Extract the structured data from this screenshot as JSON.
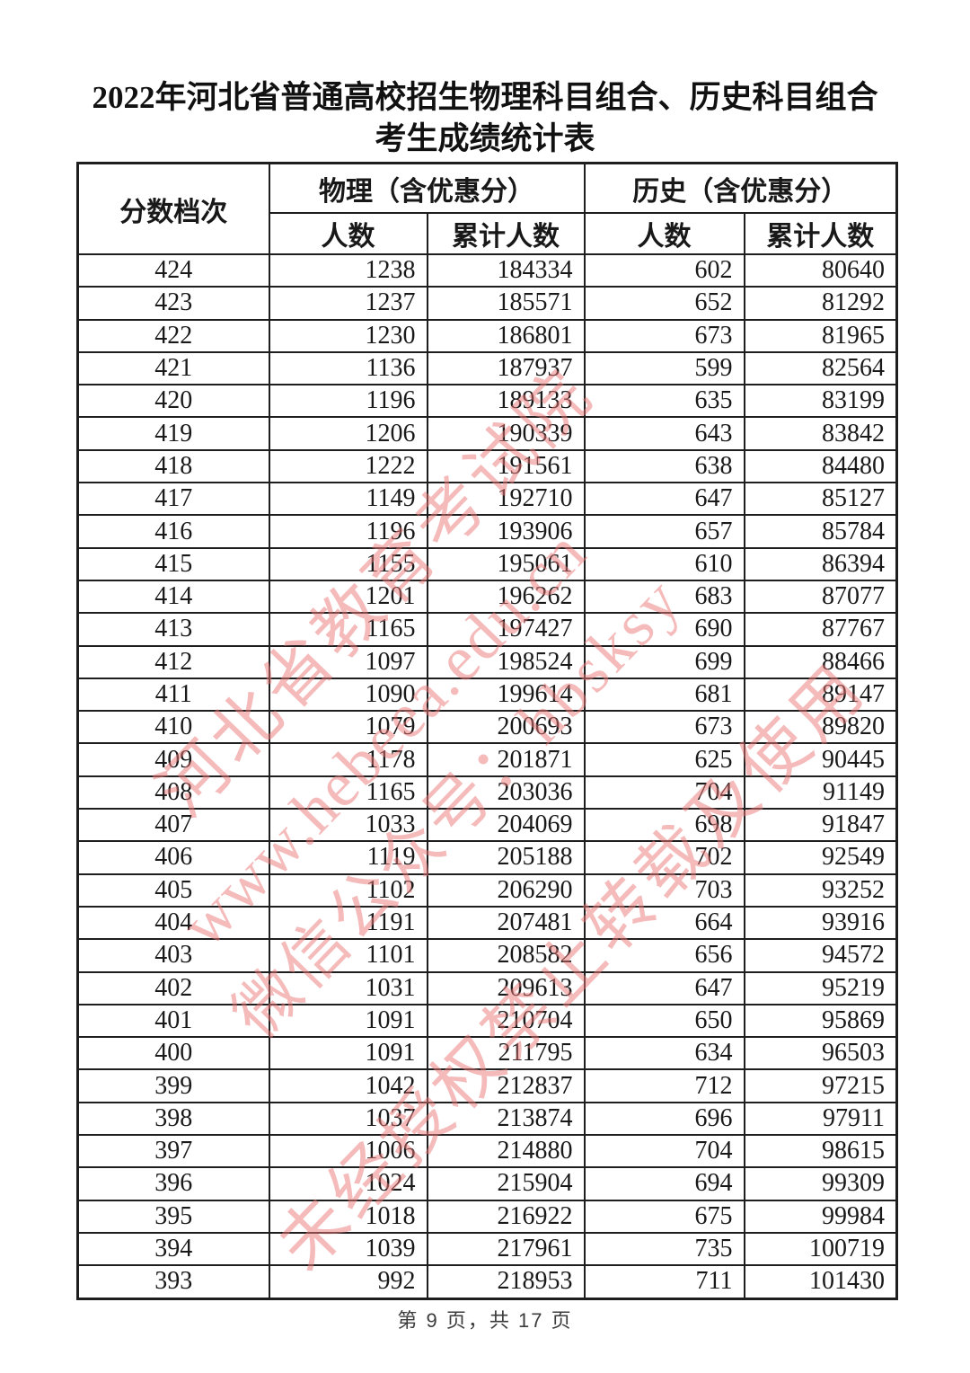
{
  "page": {
    "title_line1": "2022年河北省普通高校招生物理科目组合、历史科目组合",
    "title_line2": "考生成绩统计表",
    "footer": "第 9 页，共 17 页"
  },
  "table": {
    "headers": {
      "score_tier": "分数档次",
      "physics_group": "物理（含优惠分）",
      "history_group": "历史（含优惠分）",
      "count": "人数",
      "cumulative": "累计人数"
    },
    "rows": [
      [
        424,
        1238,
        184334,
        602,
        80640
      ],
      [
        423,
        1237,
        185571,
        652,
        81292
      ],
      [
        422,
        1230,
        186801,
        673,
        81965
      ],
      [
        421,
        1136,
        187937,
        599,
        82564
      ],
      [
        420,
        1196,
        189133,
        635,
        83199
      ],
      [
        419,
        1206,
        190339,
        643,
        83842
      ],
      [
        418,
        1222,
        191561,
        638,
        84480
      ],
      [
        417,
        1149,
        192710,
        647,
        85127
      ],
      [
        416,
        1196,
        193906,
        657,
        85784
      ],
      [
        415,
        1155,
        195061,
        610,
        86394
      ],
      [
        414,
        1201,
        196262,
        683,
        87077
      ],
      [
        413,
        1165,
        197427,
        690,
        87767
      ],
      [
        412,
        1097,
        198524,
        699,
        88466
      ],
      [
        411,
        1090,
        199614,
        681,
        89147
      ],
      [
        410,
        1079,
        200693,
        673,
        89820
      ],
      [
        409,
        1178,
        201871,
        625,
        90445
      ],
      [
        408,
        1165,
        203036,
        704,
        91149
      ],
      [
        407,
        1033,
        204069,
        698,
        91847
      ],
      [
        406,
        1119,
        205188,
        702,
        92549
      ],
      [
        405,
        1102,
        206290,
        703,
        93252
      ],
      [
        404,
        1191,
        207481,
        664,
        93916
      ],
      [
        403,
        1101,
        208582,
        656,
        94572
      ],
      [
        402,
        1031,
        209613,
        647,
        95219
      ],
      [
        401,
        1091,
        210704,
        650,
        95869
      ],
      [
        400,
        1091,
        211795,
        634,
        96503
      ],
      [
        399,
        1042,
        212837,
        712,
        97215
      ],
      [
        398,
        1037,
        213874,
        696,
        97911
      ],
      [
        397,
        1006,
        214880,
        704,
        98615
      ],
      [
        396,
        1024,
        215904,
        694,
        99309
      ],
      [
        395,
        1018,
        216922,
        675,
        99984
      ],
      [
        394,
        1039,
        217961,
        735,
        100719
      ],
      [
        393,
        992,
        218953,
        711,
        101430
      ]
    ]
  },
  "watermark": {
    "color": "#eb7878",
    "lines": [
      "河北省教育考试院",
      "www.hebeea.edu.cn",
      "微信公众号：hbsksy",
      "未经授权禁止转载及使用"
    ]
  }
}
